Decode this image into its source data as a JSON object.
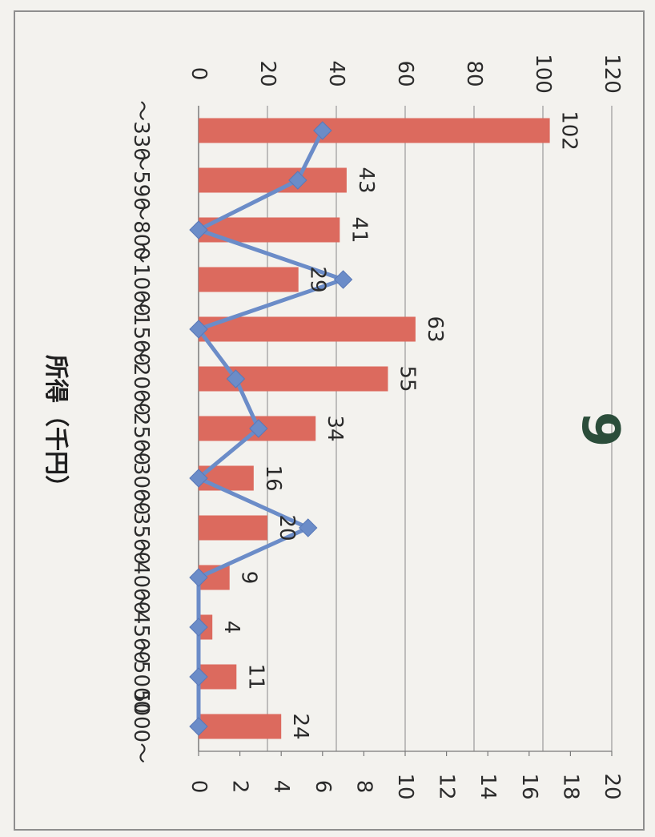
{
  "chart_data": {
    "type": "bar",
    "title": "9",
    "xlabel": "所得（千円）",
    "categories": [
      "～330",
      "～590",
      "～800",
      "～1000",
      "～1500",
      "～2000",
      "～2500",
      "～3000",
      "～3500",
      "～4000",
      "～4500",
      "～5000",
      "5000～"
    ],
    "series": [
      {
        "type": "bar",
        "axis": "primary",
        "values": [
          102,
          43,
          41,
          29,
          63,
          55,
          34,
          16,
          20,
          9,
          4,
          11,
          24
        ],
        "data_labels": [
          "102",
          "43",
          "41",
          "29",
          "63",
          "55",
          "34",
          "16",
          "20",
          "9",
          "4",
          "11",
          "24"
        ],
        "color": "#dc6a5e"
      },
      {
        "type": "line",
        "axis": "secondary",
        "values": [
          6,
          4.8,
          0,
          7,
          0,
          1.8,
          2.9,
          0,
          5.3,
          0,
          0,
          0,
          0
        ],
        "color": "#6b8cc8"
      }
    ],
    "primary_axis": {
      "range": [
        0,
        120
      ],
      "ticks": [
        "0",
        "20",
        "40",
        "60",
        "80",
        "100",
        "120"
      ]
    },
    "secondary_axis": {
      "range": [
        0,
        20
      ],
      "ticks": [
        "0",
        "2",
        "4",
        "6",
        "8",
        "10",
        "12",
        "14",
        "16",
        "18",
        "20"
      ]
    },
    "grid": true,
    "legend": "none",
    "orientation": "rotated-90-clockwise"
  }
}
